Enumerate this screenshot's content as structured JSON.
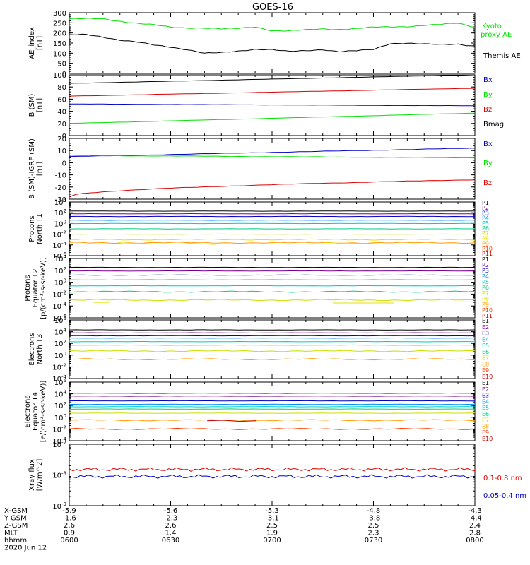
{
  "title": "GOES-16",
  "colors": {
    "black": "#000000",
    "blue": "#0000c8",
    "green": "#00e000",
    "red": "#dc0000",
    "P1": "#000000",
    "P2": "#7a0090",
    "P3": "#0000c8",
    "P4": "#0090ff",
    "P5": "#00c8c8",
    "P6": "#00d080",
    "P7": "#c8e000",
    "P8": "#e8e000",
    "P9": "#ff9900",
    "P10": "#ff3c00",
    "P11": "#c80000",
    "E1": "#000000",
    "E2": "#7a0090",
    "E3": "#0000c8",
    "E4": "#0090ff",
    "E5": "#00c8c8",
    "E6": "#00d080",
    "E7": "#c8e000",
    "E8": "#ff9900",
    "E9": "#ff3c00",
    "E10": "#c80000"
  },
  "chart_data": [
    {
      "id": "ae",
      "type": "line",
      "ylabel": [
        "AE_index",
        "[nT]"
      ],
      "ylim": [
        0,
        300
      ],
      "yticks": [
        "0",
        "50",
        "100",
        "150",
        "200",
        "250",
        "300"
      ],
      "x": [
        "0600",
        "0605",
        "0610",
        "0615",
        "0620",
        "0625",
        "0630",
        "0635",
        "0640",
        "0645",
        "0650",
        "0655",
        "0700",
        "0705",
        "0710",
        "0715",
        "0720",
        "0725",
        "0730",
        "0735",
        "0740",
        "0745",
        "0750",
        "0755",
        "0800"
      ],
      "series": [
        {
          "name": "Kyoto proxy AE",
          "color": "#00e000",
          "values": [
            270,
            270,
            270,
            258,
            248,
            240,
            228,
            225,
            225,
            220,
            222,
            230,
            212,
            210,
            215,
            220,
            218,
            222,
            228,
            230,
            232,
            238,
            242,
            248,
            228
          ]
        },
        {
          "name": "Themis AE",
          "color": "#000000",
          "values": [
            190,
            192,
            180,
            165,
            155,
            140,
            130,
            118,
            100,
            102,
            110,
            120,
            118,
            108,
            112,
            118,
            108,
            112,
            118,
            148,
            150,
            145,
            142,
            145,
            135
          ]
        }
      ]
    },
    {
      "id": "b",
      "type": "line",
      "ylabel": [
        "B (SM)",
        "[nT]"
      ],
      "ylim": [
        0,
        100
      ],
      "yticks": [
        "0",
        "20",
        "40",
        "60",
        "80",
        "100"
      ],
      "series": [
        {
          "name": "Bx",
          "color": "#0000c8",
          "start": 52,
          "end": 49
        },
        {
          "name": "By",
          "color": "#00e000",
          "start": 20,
          "end": 37
        },
        {
          "name": "Bz",
          "color": "#dc0000",
          "start": 65,
          "end": 78
        },
        {
          "name": "Bmag",
          "color": "#000000",
          "start": 86,
          "end": 100
        }
      ]
    },
    {
      "id": "db",
      "type": "line",
      "ylabel": [
        "B (SM)-IGRF (SM)",
        "[nT]"
      ],
      "ylim": [
        -30,
        20
      ],
      "yticks": [
        "-30",
        "-20",
        "-10",
        "0",
        "10",
        "20"
      ],
      "series": [
        {
          "name": "Bx",
          "color": "#0000c8",
          "start": 5,
          "end": 12
        },
        {
          "name": "By",
          "color": "#00e000",
          "start": 6,
          "end": 4
        },
        {
          "name": "Bz",
          "color": "#dc0000",
          "start": -28,
          "end": -14
        }
      ]
    },
    {
      "id": "pt1",
      "type": "line",
      "scale": "log",
      "ylabel": [
        "Protons",
        "North T1"
      ],
      "ylim": [
        -6,
        4
      ],
      "yticks": [
        "10^-6",
        "10^-4",
        "10^-2",
        "10^0",
        "10^2",
        "10^4"
      ],
      "legend": [
        "P1",
        "P2",
        "P3",
        "P4",
        "P5",
        "P6",
        "P7",
        "P8",
        "P9",
        "P10",
        "P11"
      ],
      "levels": [
        2.3,
        1.8,
        1.3,
        0.6,
        0.0,
        -1.0,
        -2.0,
        -3.0,
        -3.6
      ]
    },
    {
      "id": "pt2",
      "type": "line",
      "scale": "log",
      "ylabel": [
        "Protons",
        "Equator T2",
        "[p/(cm²-s-sr-keV)]"
      ],
      "ylim": [
        -6,
        4
      ],
      "yticks": [
        "10^-6",
        "10^-4",
        "10^-2",
        "10^0",
        "10^2",
        "10^4"
      ],
      "legend": [
        "P1",
        "P2",
        "P3",
        "P4",
        "P5",
        "P6",
        "P7",
        "P8",
        "P9",
        "P10",
        "P11"
      ],
      "levels": [
        2.5,
        1.9,
        1.2,
        0.4,
        -0.6,
        -1.6,
        -3.0
      ]
    },
    {
      "id": "et3",
      "type": "line",
      "scale": "log",
      "ylabel": [
        "Electrons",
        "North T3"
      ],
      "ylim": [
        -4,
        6
      ],
      "yticks": [
        "10^-4",
        "10^-2",
        "10^0",
        "10^2",
        "10^4",
        "10^6"
      ],
      "legend": [
        "E1",
        "E2",
        "E3",
        "E4",
        "E5",
        "E6",
        "E7",
        "E8",
        "E9",
        "E10"
      ],
      "levels": [
        4.3,
        3.8,
        3.3,
        2.9,
        2.3,
        1.7,
        0.7,
        -0.7
      ]
    },
    {
      "id": "et4",
      "type": "line",
      "scale": "log",
      "ylabel": [
        "Electrons",
        "Equator T4",
        "[e/(cm²-s-sr-keV)]"
      ],
      "ylim": [
        -4,
        6
      ],
      "yticks": [
        "10^-4",
        "10^-2",
        "10^0",
        "10^2",
        "10^4",
        "10^6"
      ],
      "legend": [
        "E1",
        "E2",
        "E3",
        "E4",
        "E5",
        "E6",
        "E7",
        "E8",
        "E9",
        "E10"
      ],
      "levels": [
        4.1,
        3.6,
        2.8,
        2.2,
        1.8,
        1.4,
        0.7,
        -0.5,
        -2.0
      ]
    },
    {
      "id": "xray",
      "type": "line",
      "scale": "log",
      "ylabel": [
        "Xray  flux",
        "[W/m^2]"
      ],
      "ylim": [
        -9,
        -7
      ],
      "yticks": [
        "10^-9",
        "10^-8",
        "10^-7"
      ],
      "series": [
        {
          "name": "0.1-0.8 nm",
          "color": "#dc0000",
          "level": -7.82
        },
        {
          "name": "0.05-0.4 nm",
          "color": "#0000c8",
          "level": -8.05
        }
      ]
    }
  ],
  "footer": {
    "rows": [
      {
        "label": "X-GSM",
        "values": [
          "-5.9",
          "-5.6",
          "-5.3",
          "-4.8",
          "-4.3"
        ]
      },
      {
        "label": "Y-GSM",
        "values": [
          "-1.6",
          "-2.3",
          "-3.1",
          "-3.8",
          "-4.4"
        ]
      },
      {
        "label": "Z-GSM",
        "values": [
          "2.6",
          "2.6",
          "2.5",
          "2.5",
          "2.4"
        ]
      },
      {
        "label": "MLT",
        "values": [
          "0.9",
          "1.4",
          "1.9",
          "2.3",
          "2.8"
        ]
      },
      {
        "label": "hhmm",
        "values": [
          "0600",
          "0630",
          "0700",
          "0730",
          "0800"
        ]
      }
    ],
    "date": "2020 Jun 12"
  }
}
